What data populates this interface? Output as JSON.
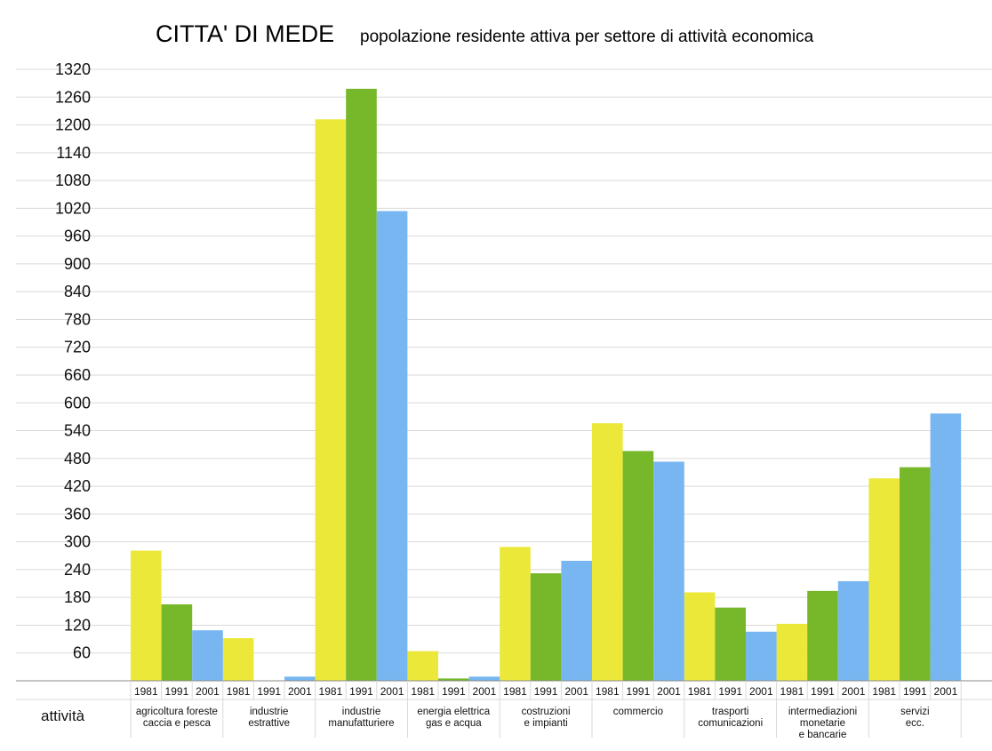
{
  "chart_data": {
    "type": "bar",
    "title": "CITTA' DI MEDE",
    "subtitle": "popolazione residente attiva  per settore di attività economica",
    "xlabel": "attività",
    "ylabel": "",
    "ylim": [
      0,
      1320
    ],
    "yticks": [
      60,
      120,
      180,
      240,
      300,
      360,
      420,
      480,
      540,
      600,
      660,
      720,
      780,
      840,
      900,
      960,
      1020,
      1080,
      1140,
      1200,
      1260,
      1320
    ],
    "grid": true,
    "years": [
      "1981",
      "1991",
      "2001"
    ],
    "categories": [
      [
        "agricoltura foreste",
        "caccia e pesca"
      ],
      [
        "industrie",
        "estrattive"
      ],
      [
        "industrie",
        "manufatturiere"
      ],
      [
        "energia elettrica",
        "gas e acqua"
      ],
      [
        "costruzioni",
        "e impianti"
      ],
      [
        "commercio"
      ],
      [
        "trasporti",
        "comunicazioni"
      ],
      [
        "intermediazioni",
        "monetarie",
        "e bancarie"
      ],
      [
        "servizi",
        "ecc."
      ]
    ],
    "series": [
      {
        "year": "1981",
        "color": "#ebe83a",
        "values": [
          281,
          92,
          1212,
          64,
          289,
          556,
          191,
          123,
          437
        ]
      },
      {
        "year": "1991",
        "color": "#76b82a",
        "values": [
          165,
          0,
          1278,
          5,
          232,
          496,
          158,
          194,
          461
        ]
      },
      {
        "year": "2001",
        "color": "#78b6f2",
        "values": [
          109,
          9,
          1014,
          9,
          259,
          473,
          106,
          215,
          577
        ]
      }
    ]
  }
}
